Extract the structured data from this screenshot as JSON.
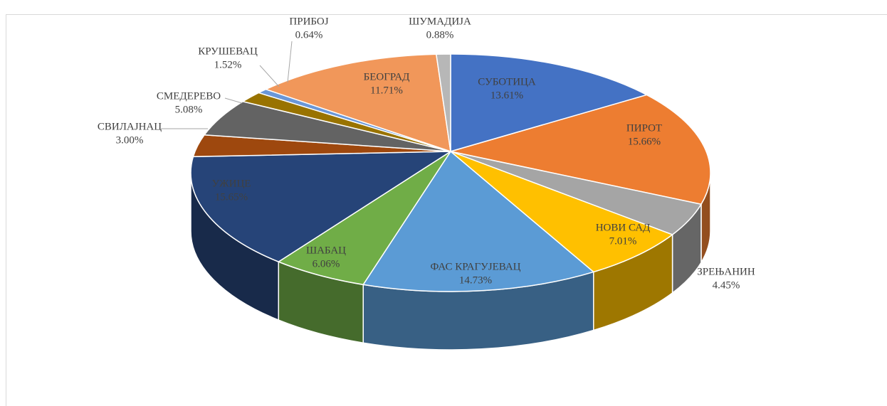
{
  "chart_data": {
    "type": "pie3d",
    "categories": [
      "СУБОТИЦА",
      "ПИРОТ",
      "ЗРЕЊАНИН",
      "НОВИ САД",
      "ФАС КРАГУЈЕВАЦ",
      "ШАБАЦ",
      "УЖИЦЕ",
      "СВИЛАЈНАЦ",
      "СМЕДЕРЕВО",
      "КРУШЕВАЦ",
      "ПРИБОЈ",
      "БЕОГРАД",
      "ШУМАДИЈА"
    ],
    "values": [
      13.61,
      15.66,
      4.45,
      7.01,
      14.73,
      6.06,
      15.65,
      3.0,
      5.08,
      1.52,
      0.64,
      11.71,
      0.88
    ],
    "value_labels": [
      "13.61%",
      "15.66%",
      "4.45%",
      "7.01%",
      "14.73%",
      "6.06%",
      "15.65%",
      "3.00%",
      "5.08%",
      "1.52%",
      "0.64%",
      "11.71%",
      "0.88%"
    ],
    "colors": [
      "#4472c4",
      "#ed7d31",
      "#a5a5a5",
      "#ffc000",
      "#5b9bd5",
      "#70ad47",
      "#264478",
      "#9e480e",
      "#636363",
      "#997300",
      "#6a97d8",
      "#f1975a",
      "#b7b7b7"
    ]
  }
}
